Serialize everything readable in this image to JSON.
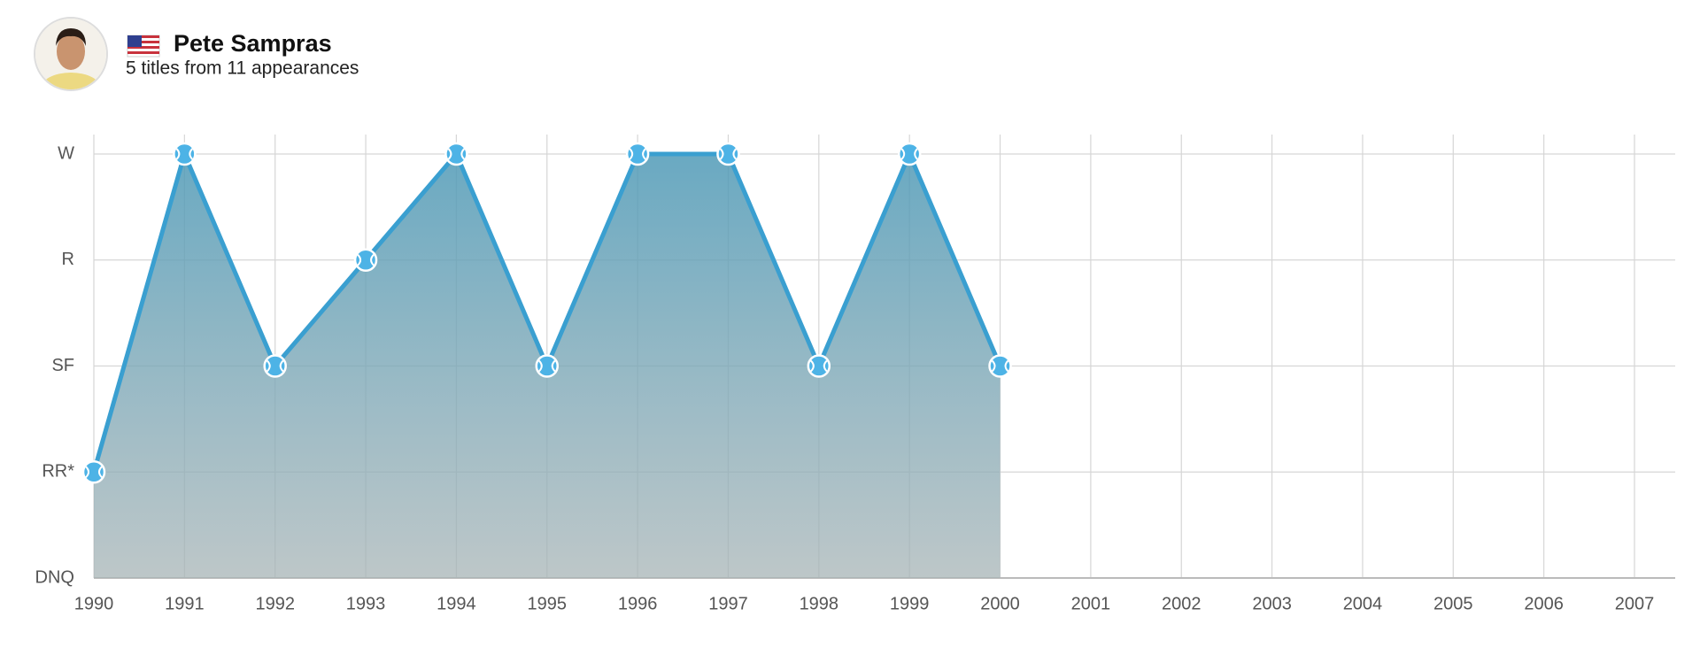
{
  "chart_data": {
    "type": "area",
    "title": "Pete Sampras",
    "subtitle": "5 titles from 11 appearances",
    "x": [
      1990,
      1991,
      1992,
      1993,
      1994,
      1995,
      1996,
      1997,
      1998,
      1999,
      2000
    ],
    "values": [
      1,
      4,
      2,
      3,
      4,
      2,
      4,
      4,
      2,
      4,
      2
    ],
    "color": "#3a9fd0",
    "xlim": [
      1990,
      2007
    ],
    "xticks": [
      1990,
      1991,
      1992,
      1993,
      1994,
      1995,
      1996,
      1997,
      1998,
      1999,
      2000,
      2001,
      2002,
      2003,
      2004,
      2005,
      2006,
      2007
    ],
    "ylim": [
      0,
      4
    ],
    "yticks": [
      {
        "value": 0,
        "label": "DNQ"
      },
      {
        "value": 1,
        "label": "RR*"
      },
      {
        "value": 2,
        "label": "SF"
      },
      {
        "value": 3,
        "label": "R"
      },
      {
        "value": 4,
        "label": "W"
      }
    ],
    "grid": true
  }
}
